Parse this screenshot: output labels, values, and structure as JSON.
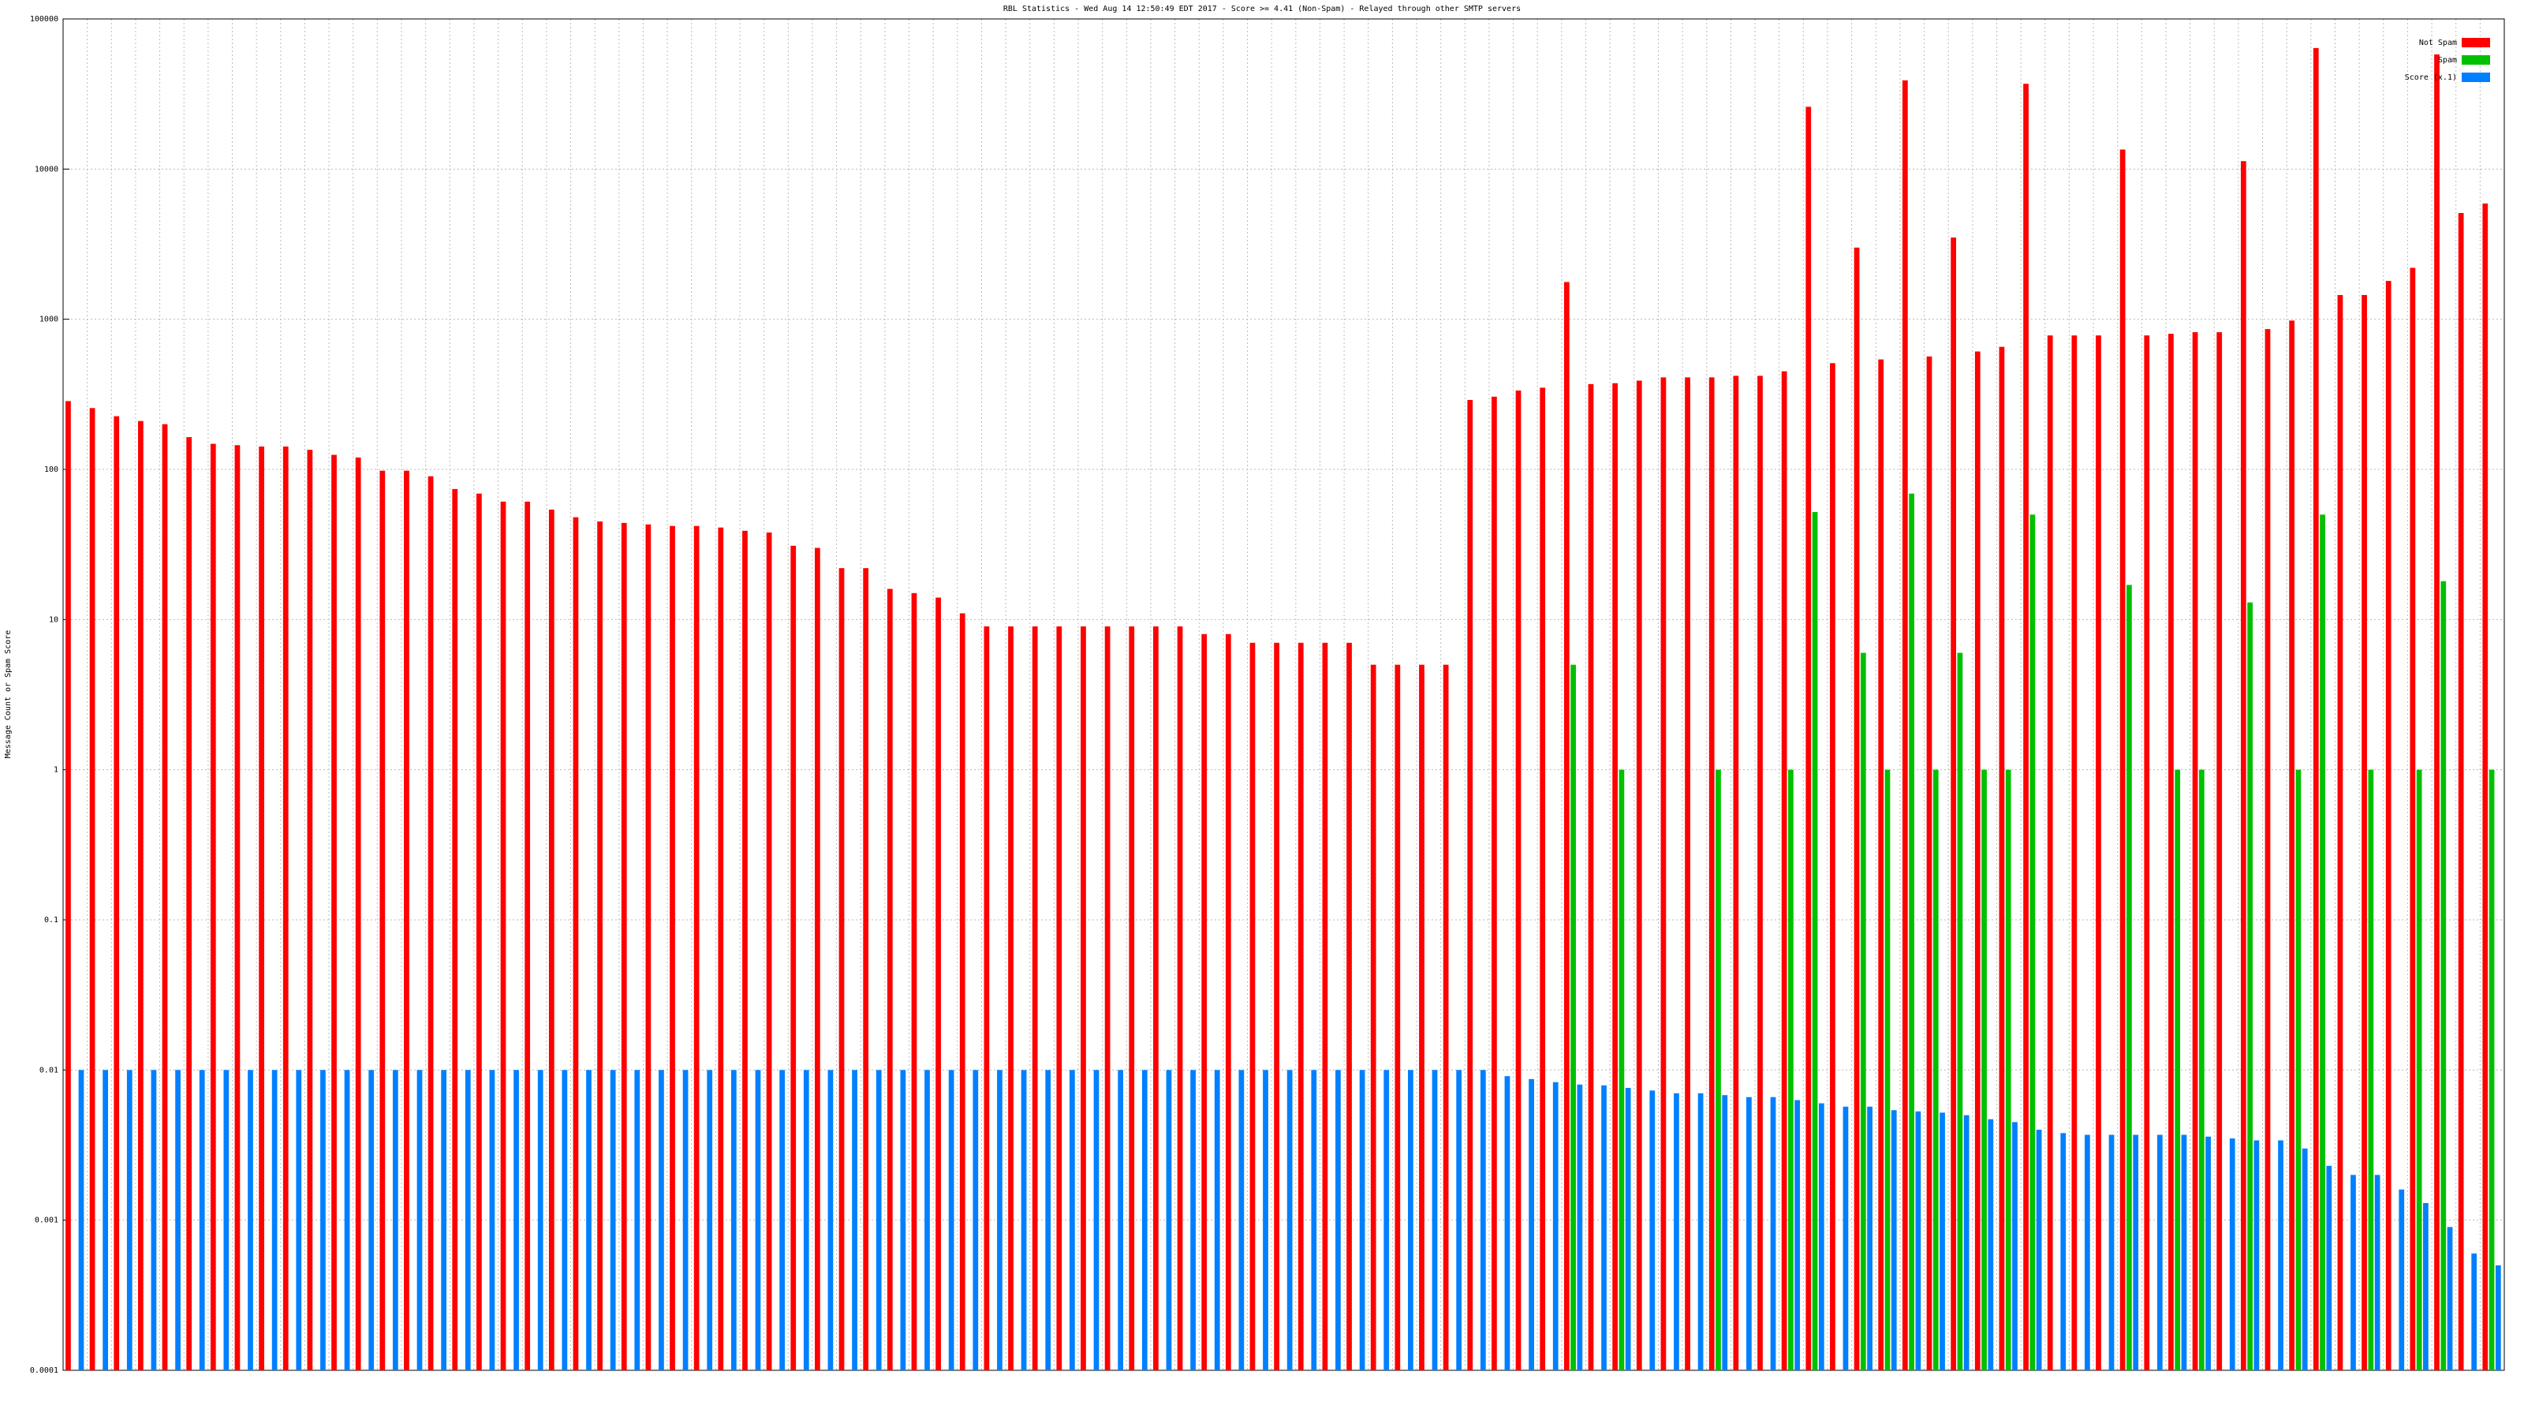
{
  "chart_data": {
    "type": "bar",
    "title": "RBL Statistics - Wed Aug 14 12:50:49 EDT 2017 - Score >= 4.41 (Non-Spam) - Relayed through other SMTP servers",
    "y_label": "Message Count or Spam Score",
    "log_scale": true,
    "grid": true,
    "legend": "top-right",
    "ylim": [
      0.0001,
      100000
    ],
    "yticks": [
      0.0001,
      0.001,
      0.01,
      0.1,
      1,
      10,
      100,
      1000,
      10000,
      100000
    ],
    "categories": [
      null,
      null,
      null,
      null,
      null,
      null,
      null,
      null,
      null,
      null,
      null,
      null,
      null,
      null,
      null,
      null,
      null,
      null,
      null,
      null,
      null,
      null,
      null,
      null,
      null,
      null,
      null,
      null,
      null,
      null,
      null,
      null,
      null,
      null,
      null,
      null,
      null,
      null,
      null,
      null,
      null,
      null,
      null,
      null,
      null,
      null,
      null,
      null,
      null,
      null,
      null,
      null,
      null,
      null,
      null,
      null,
      null,
      null,
      null,
      null,
      null,
      null,
      null,
      null,
      null,
      null,
      null,
      null,
      null,
      null,
      null,
      null,
      null,
      null,
      null,
      null,
      null,
      null,
      null,
      null,
      null,
      null,
      null,
      null,
      null,
      null,
      null,
      null,
      null,
      null,
      null,
      null,
      null,
      null,
      null,
      null,
      null,
      null,
      null,
      null,
      null
    ],
    "series": [
      {
        "name": "Not Spam",
        "color": "#ff0000",
        "values": [
          285,
          256,
          226,
          210,
          200,
          164,
          148,
          145,
          142,
          142,
          135,
          125,
          120,
          98,
          98,
          90,
          74,
          69,
          61,
          61,
          54,
          48,
          45,
          44,
          43,
          42,
          42,
          41,
          39,
          38,
          31,
          30,
          22,
          22,
          16,
          15,
          14,
          11,
          9,
          9,
          9,
          9,
          9,
          9,
          9,
          9,
          9,
          8,
          8,
          7,
          7,
          7,
          7,
          7,
          5,
          5,
          5,
          5,
          290,
          305,
          335,
          350,
          1770,
          370,
          375,
          390,
          410,
          410,
          410,
          420,
          420,
          450,
          26000,
          510,
          3000,
          540,
          39000,
          565,
          3500,
          610,
          655,
          37000,
          780,
          780,
          780,
          13500,
          780,
          800,
          820,
          820,
          11300,
          860,
          980,
          64000,
          1450,
          1450,
          1800,
          2200,
          58000,
          5100,
          5900
        ]
      },
      {
        "name": "Spam",
        "color": "#00c000",
        "values": [
          null,
          null,
          null,
          null,
          null,
          null,
          null,
          null,
          null,
          null,
          null,
          null,
          null,
          null,
          null,
          null,
          null,
          null,
          null,
          null,
          null,
          null,
          null,
          null,
          null,
          null,
          null,
          null,
          null,
          null,
          null,
          null,
          null,
          null,
          null,
          null,
          null,
          null,
          null,
          null,
          null,
          null,
          null,
          null,
          null,
          null,
          null,
          null,
          null,
          null,
          null,
          null,
          null,
          null,
          null,
          null,
          null,
          null,
          null,
          null,
          null,
          null,
          5,
          null,
          1,
          null,
          null,
          null,
          1,
          null,
          null,
          1,
          52,
          null,
          6,
          1,
          69,
          1,
          6,
          1,
          1,
          50,
          null,
          null,
          null,
          17,
          null,
          1,
          1,
          null,
          13,
          null,
          1,
          50,
          null,
          1,
          null,
          1,
          18,
          null,
          1
        ]
      },
      {
        "name": "Score (x.1)",
        "color": "#0080ff",
        "values": [
          0.01,
          0.01,
          0.01,
          0.01,
          0.01,
          0.01,
          0.01,
          0.01,
          0.01,
          0.01,
          0.01,
          0.01,
          0.01,
          0.01,
          0.01,
          0.01,
          0.01,
          0.01,
          0.01,
          0.01,
          0.01,
          0.01,
          0.01,
          0.01,
          0.01,
          0.01,
          0.01,
          0.01,
          0.01,
          0.01,
          0.01,
          0.01,
          0.01,
          0.01,
          0.01,
          0.01,
          0.01,
          0.01,
          0.01,
          0.01,
          0.01,
          0.01,
          0.01,
          0.01,
          0.01,
          0.01,
          0.01,
          0.01,
          0.01,
          0.01,
          0.01,
          0.01,
          0.01,
          0.01,
          0.01,
          0.01,
          0.01,
          0.01,
          0.01,
          0.0091,
          0.0087,
          0.0083,
          0.008,
          0.0079,
          0.0076,
          0.0073,
          0.007,
          0.007,
          0.0068,
          0.0066,
          0.0066,
          0.0063,
          0.006,
          0.0057,
          0.0057,
          0.0054,
          0.0053,
          0.0052,
          0.005,
          0.0047,
          0.0045,
          0.004,
          0.0038,
          0.0037,
          0.0037,
          0.0037,
          0.0037,
          0.0037,
          0.0036,
          0.0035,
          0.0034,
          0.0034,
          0.003,
          0.0023,
          0.002,
          0.002,
          0.0016,
          0.0013,
          0.0009,
          0.0006,
          0.0005
        ]
      }
    ]
  }
}
